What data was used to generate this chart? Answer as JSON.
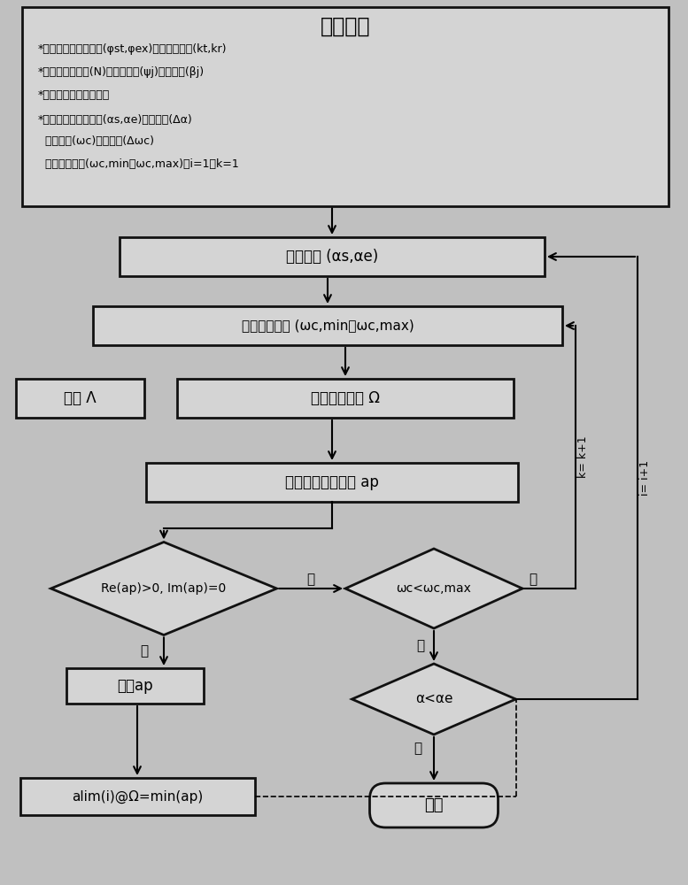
{
  "bg_color": "#c0c0c0",
  "box_fill": "#d4d4d4",
  "box_edge": "#111111",
  "title": "输入参数",
  "line1": "*切削参数：浸入角度(φst,φex)，切削力系数(kt,kr)",
  "line2": "*刀具参数：齿数(N)，端部齿距(ψj)，螺旋角(βj)",
  "line3": "*动态参数：传递函数等",
  "line4": "*仿真参数：波长范围(αs,αe)，增加量(Δα)",
  "line5": "  颤振频率(ωc)，分辨率(Δωc)",
  "line6": "  颤振频率范围(ωc,min，ωc,max)，i=1，k=1",
  "box1": "选择波长 (αs,αe)",
  "box2": "选择颤振频率 (ωc,min，ωc,max)",
  "box3a": "求解 Λ",
  "box3b": "求解主轴转速 Ω",
  "box4": "求解轴向切削深度 ap",
  "diamond1": "Re(ap)>0, Im(ap)=0",
  "diamond2": "ωc<ωc,max",
  "diamond3": "α<αe",
  "box5": "存储ap",
  "box6": "alim(i)@Ω=min(ap)",
  "end_text": "结束",
  "yes1": "是",
  "no1": "否",
  "no2": "否",
  "no3": "否",
  "yes2": "是",
  "label_k": "k= k+1",
  "label_i": "i= i+1"
}
